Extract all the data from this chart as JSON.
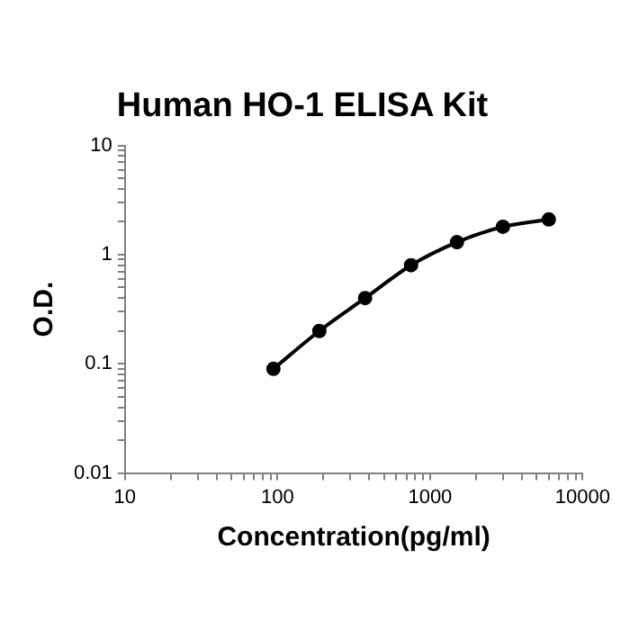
{
  "chart_data": {
    "type": "line",
    "title": "Human HO-1 ELISA Kit",
    "xlabel": "Concentration(pg/ml)",
    "ylabel": "O.D.",
    "log": "xy",
    "grid": false,
    "legend": false,
    "marker": "circle",
    "line_style": "solid",
    "x": [
      94,
      188,
      375,
      750,
      1500,
      3000,
      6000
    ],
    "series": [
      {
        "color": "#000000",
        "values": [
          0.09,
          0.2,
          0.4,
          0.8,
          1.3,
          1.8,
          2.1
        ]
      }
    ],
    "xlim": [
      10,
      10000
    ],
    "ylim": [
      0.01,
      10
    ],
    "xticks": [
      10,
      {
        "value": 20,
        "label": null
      },
      {
        "value": 30,
        "label": null
      },
      {
        "value": 40,
        "label": null
      },
      {
        "value": 50,
        "label": null
      },
      {
        "value": 60,
        "label": null
      },
      {
        "value": 70,
        "label": null
      },
      {
        "value": 80,
        "label": null
      },
      {
        "value": 90,
        "label": null
      },
      100,
      {
        "value": 200,
        "label": null
      },
      {
        "value": 300,
        "label": null
      },
      {
        "value": 400,
        "label": null
      },
      {
        "value": 500,
        "label": null
      },
      {
        "value": 600,
        "label": null
      },
      {
        "value": 700,
        "label": null
      },
      {
        "value": 800,
        "label": null
      },
      {
        "value": 900,
        "label": null
      },
      1000,
      {
        "value": 2000,
        "label": null
      },
      {
        "value": 3000,
        "label": null
      },
      {
        "value": 4000,
        "label": null
      },
      {
        "value": 5000,
        "label": null
      },
      {
        "value": 6000,
        "label": null
      },
      {
        "value": 7000,
        "label": null
      },
      {
        "value": 8000,
        "label": null
      },
      {
        "value": 9000,
        "label": null
      },
      10000
    ],
    "yticks": [
      0.01,
      {
        "value": 0.02,
        "label": null
      },
      {
        "value": 0.03,
        "label": null
      },
      {
        "value": 0.04,
        "label": null
      },
      {
        "value": 0.05,
        "label": null
      },
      {
        "value": 0.06,
        "label": null
      },
      {
        "value": 0.07,
        "label": null
      },
      {
        "value": 0.08,
        "label": null
      },
      {
        "value": 0.09,
        "label": null
      },
      0.1,
      {
        "value": 0.2,
        "label": null
      },
      {
        "value": 0.3,
        "label": null
      },
      {
        "value": 0.4,
        "label": null
      },
      {
        "value": 0.5,
        "label": null
      },
      {
        "value": 0.6,
        "label": null
      },
      {
        "value": 0.7,
        "label": null
      },
      {
        "value": 0.8,
        "label": null
      },
      {
        "value": 0.9,
        "label": null
      },
      1,
      {
        "value": 2,
        "label": null
      },
      {
        "value": 3,
        "label": null
      },
      {
        "value": 4,
        "label": null
      },
      {
        "value": 5,
        "label": null
      },
      {
        "value": 6,
        "label": null
      },
      {
        "value": 7,
        "label": null
      },
      {
        "value": 8,
        "label": null
      },
      {
        "value": 9,
        "label": null
      },
      10
    ]
  }
}
